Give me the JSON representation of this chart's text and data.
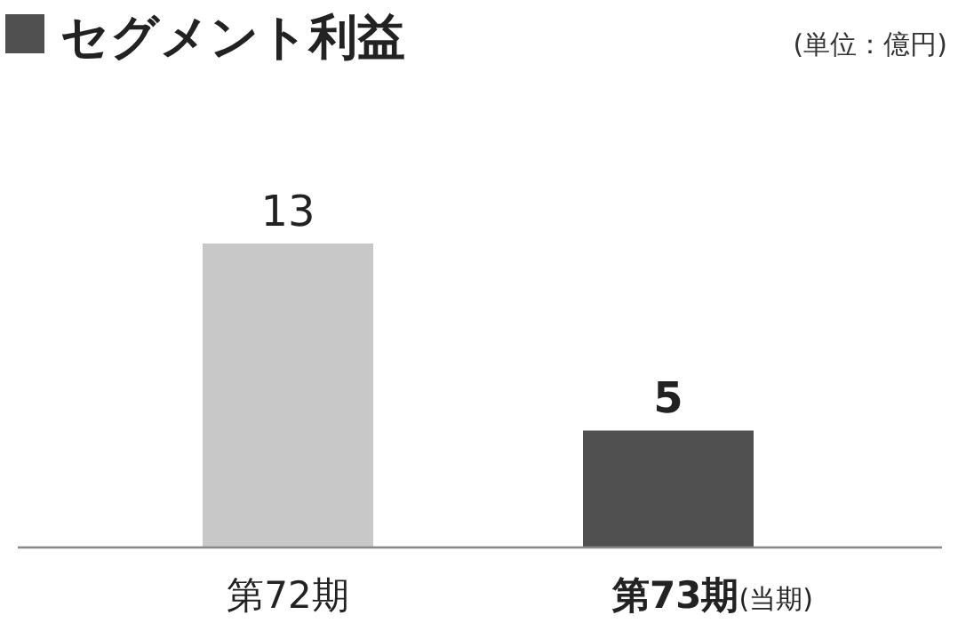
{
  "chart_data": {
    "type": "bar",
    "title": "セグメント利益",
    "annotations": [
      "(単位：億円)"
    ],
    "categories": [
      "第72期",
      "第73期(当期)"
    ],
    "values": [
      13,
      5
    ],
    "colors": [
      "#c8c8c8",
      "#505050"
    ],
    "data_labels": true
  }
}
